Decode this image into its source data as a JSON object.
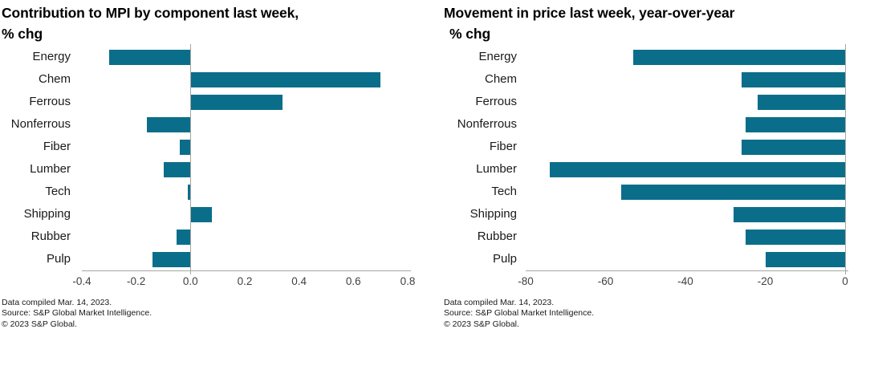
{
  "chart_data": [
    {
      "type": "bar",
      "orientation": "horizontal",
      "title": "Contribution to MPI by component last week, % chg",
      "title_lines": [
        "Contribution to MPI by component last week,",
        "% chg"
      ],
      "categories": [
        "Energy",
        "Chem",
        "Ferrous",
        "Nonferrous",
        "Fiber",
        "Lumber",
        "Tech",
        "Shipping",
        "Rubber",
        "Pulp"
      ],
      "values": [
        -0.3,
        0.7,
        0.34,
        -0.16,
        -0.04,
        -0.1,
        -0.01,
        0.08,
        -0.05,
        -0.14
      ],
      "xlabel": "",
      "ylabel": "",
      "xlim": [
        -0.4,
        0.8
      ],
      "xticks": [
        -0.4,
        -0.2,
        0,
        0.2,
        0.4,
        0.6,
        0.8
      ],
      "xtick_labels": [
        "-0.4",
        "-0.2",
        "0.0",
        "0.2",
        "0.4",
        "0.6",
        "0.8"
      ],
      "grid": false,
      "legend": "none",
      "bar_color": "#0a6e8a",
      "footnotes": [
        "Data compiled Mar. 14, 2023.",
        "Source: S&P Global Market Intelligence.",
        "© 2023 S&P Global."
      ]
    },
    {
      "type": "bar",
      "orientation": "horizontal",
      "title": "Movement in price last week, year-over-year % chg",
      "title_lines": [
        "Movement in price last week, year-over-year",
        "% chg"
      ],
      "categories": [
        "Energy",
        "Chem",
        "Ferrous",
        "Nonferrous",
        "Fiber",
        "Lumber",
        "Tech",
        "Shipping",
        "Rubber",
        "Pulp"
      ],
      "values": [
        -53,
        -26,
        -22,
        -25,
        -26,
        -74,
        -56,
        -28,
        -25,
        -20
      ],
      "xlabel": "",
      "ylabel": "",
      "xlim": [
        -80,
        0
      ],
      "xticks": [
        -80,
        -60,
        -40,
        -20,
        0
      ],
      "xtick_labels": [
        "-80",
        "-60",
        "-40",
        "-20",
        "0"
      ],
      "grid": false,
      "legend": "none",
      "bar_color": "#0a6e8a",
      "footnotes": [
        "Data compiled Mar. 14, 2023.",
        "Source: S&P Global Market Intelligence.",
        "© 2023 S&P Global."
      ]
    }
  ],
  "colors": {
    "bar": "#0a6e8a",
    "axis_line": "#a6a6a6",
    "zero_line": "#a6a6a6",
    "tick_text": "#404040",
    "category_text": "#1a1a1a",
    "title_text": "#000000",
    "background": "#ffffff"
  }
}
